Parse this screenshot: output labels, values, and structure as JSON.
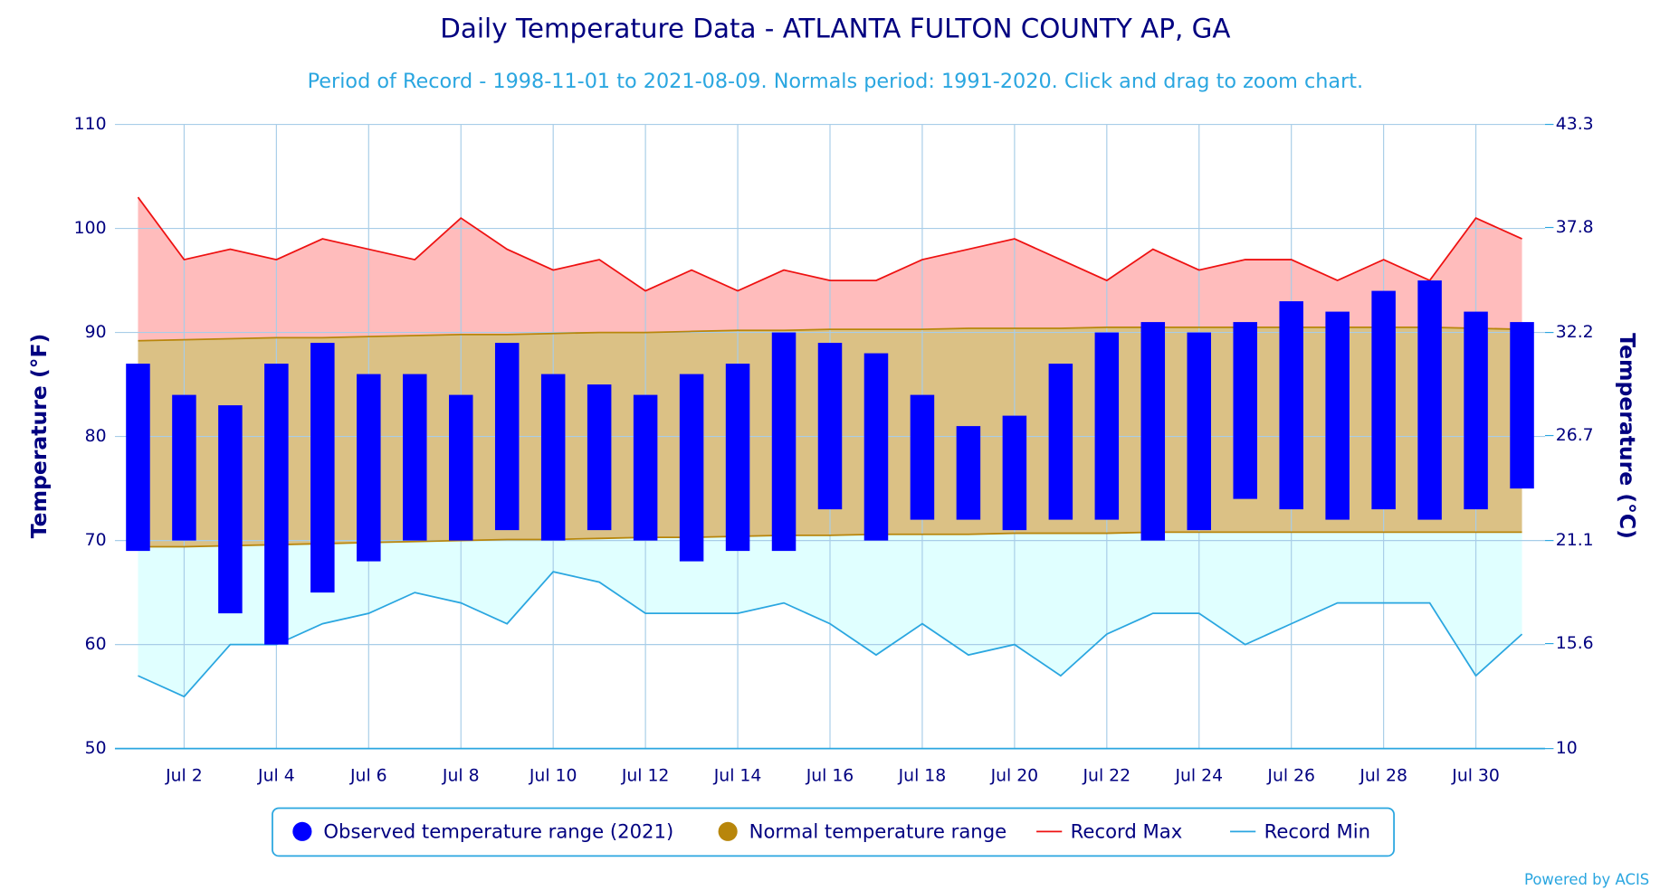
{
  "chart_data": {
    "type": "range",
    "title": "Daily Temperature Data - ATLANTA FULTON COUNTY AP, GA",
    "subtitle": "Period of Record - 1998-11-01 to 2021-08-09. Normals period: 1991-2020. Click and drag to zoom chart.",
    "ylabel": "Temperature (°F)",
    "y2label": "Temperature (°C)",
    "credit": "Powered by ACIS",
    "categories": [
      null,
      "Jul 2",
      null,
      "Jul 4",
      null,
      "Jul 6",
      null,
      "Jul 8",
      null,
      "Jul 10",
      null,
      "Jul 12",
      null,
      "Jul 14",
      null,
      "Jul 16",
      null,
      "Jul 18",
      null,
      "Jul 20",
      null,
      "Jul 22",
      null,
      "Jul 24",
      null,
      "Jul 26",
      null,
      "Jul 28",
      null,
      "Jul 30",
      null
    ],
    "ylim": [
      50,
      110
    ],
    "yticks": [
      50,
      60,
      70,
      80,
      90,
      100,
      110
    ],
    "y2lim": [
      10,
      43.3
    ],
    "y2ticks": [
      10,
      15.6,
      21.1,
      26.7,
      32.2,
      37.8,
      43.3
    ],
    "grid": true,
    "series": [
      {
        "name": "Observed temperature range (2021)",
        "color": "#0000ff",
        "high": [
          87,
          84,
          83,
          87,
          89,
          86,
          86,
          84,
          89,
          86,
          85,
          84,
          86,
          87,
          90,
          89,
          88,
          84,
          81,
          82,
          87,
          90,
          91,
          90,
          91,
          93,
          92,
          94,
          95,
          92,
          91
        ],
        "low": [
          69,
          70,
          63,
          60,
          65,
          68,
          70,
          70,
          71,
          70,
          71,
          70,
          68,
          69,
          69,
          73,
          70,
          72,
          72,
          71,
          72,
          72,
          70,
          71,
          74,
          73,
          72,
          73,
          72,
          73,
          75
        ]
      },
      {
        "name": "Normal temperature range",
        "color": "#b8860b",
        "fill": "#dbc185",
        "high": [
          89.2,
          89.3,
          89.4,
          89.5,
          89.5,
          89.6,
          89.7,
          89.8,
          89.8,
          89.9,
          90.0,
          90.0,
          90.1,
          90.2,
          90.2,
          90.3,
          90.3,
          90.3,
          90.4,
          90.4,
          90.4,
          90.5,
          90.5,
          90.5,
          90.5,
          90.5,
          90.5,
          90.5,
          90.5,
          90.4,
          90.3
        ],
        "low": [
          69.4,
          69.4,
          69.5,
          69.6,
          69.7,
          69.8,
          69.9,
          70.0,
          70.1,
          70.1,
          70.2,
          70.3,
          70.3,
          70.4,
          70.5,
          70.5,
          70.6,
          70.6,
          70.6,
          70.7,
          70.7,
          70.7,
          70.8,
          70.8,
          70.8,
          70.8,
          70.8,
          70.8,
          70.8,
          70.8,
          70.8
        ]
      },
      {
        "name": "Record Max",
        "color": "#ee1111",
        "fill": "#ffbcbc",
        "values": [
          103,
          97,
          98,
          97,
          99,
          98,
          97,
          101,
          98,
          96,
          97,
          94,
          96,
          94,
          96,
          95,
          95,
          97,
          98,
          99,
          97,
          95,
          98,
          96,
          97,
          97,
          95,
          97,
          95,
          101,
          99
        ]
      },
      {
        "name": "Record Min",
        "color": "#2aa6e0",
        "fill": "#e0ffff",
        "values": [
          57,
          55,
          60,
          60,
          62,
          63,
          65,
          64,
          62,
          67,
          66,
          63,
          63,
          63,
          64,
          62,
          59,
          62,
          59,
          60,
          57,
          61,
          63,
          63,
          60,
          62,
          64,
          64,
          64,
          57,
          61
        ]
      }
    ]
  }
}
